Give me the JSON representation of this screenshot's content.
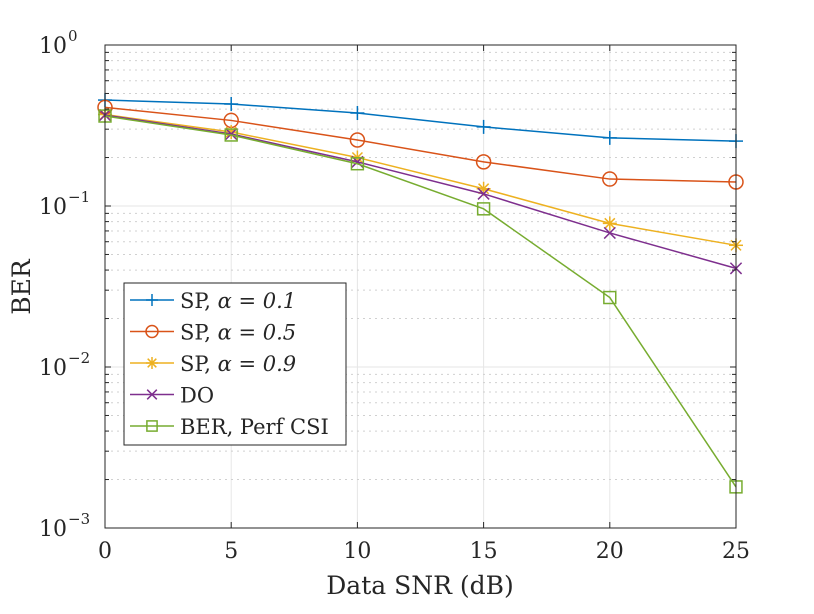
{
  "chart_data": {
    "type": "line",
    "title": "",
    "xlabel": "Data SNR (dB)",
    "ylabel": "BER",
    "xscale": "linear",
    "yscale": "log",
    "xlim": [
      0,
      25
    ],
    "ylim": [
      0.001,
      1
    ],
    "grid": true,
    "minor_grid": true,
    "legend_position": "bottom-left",
    "x": [
      0,
      5,
      10,
      15,
      20,
      25
    ],
    "xticks": [
      "0",
      "5",
      "10",
      "15",
      "20",
      "25"
    ],
    "yticks": [
      {
        "base": "10",
        "exp": "0",
        "value": 1
      },
      {
        "base": "10",
        "exp": "−1",
        "value": 0.1
      },
      {
        "base": "10",
        "exp": "−2",
        "value": 0.01
      },
      {
        "base": "10",
        "exp": "−3",
        "value": 0.001
      }
    ],
    "series": [
      {
        "name": "SP, α = 0.1",
        "label_pre": "SP, ",
        "label_math": "α = 0.1",
        "color": "#0072BD",
        "marker": "plus",
        "values": [
          0.455,
          0.43,
          0.378,
          0.31,
          0.265,
          0.253
        ]
      },
      {
        "name": "SP, α = 0.5",
        "label_pre": "SP, ",
        "label_math": "α = 0.5",
        "color": "#D95319",
        "marker": "circle",
        "values": [
          0.41,
          0.34,
          0.257,
          0.188,
          0.147,
          0.141
        ]
      },
      {
        "name": "SP, α = 0.9",
        "label_pre": "SP, ",
        "label_math": "α = 0.9",
        "color": "#EDB120",
        "marker": "asterisk",
        "values": [
          0.37,
          0.288,
          0.2,
          0.128,
          0.078,
          0.057
        ]
      },
      {
        "name": "DO",
        "label_pre": "DO",
        "label_math": "",
        "color": "#7E2F8E",
        "marker": "x",
        "values": [
          0.367,
          0.28,
          0.188,
          0.119,
          0.068,
          0.041
        ]
      },
      {
        "name": "BER, Perf CSI",
        "label_pre": "BER, Perf CSI",
        "label_math": "",
        "color": "#77AC30",
        "marker": "square",
        "values": [
          0.362,
          0.276,
          0.183,
          0.096,
          0.027,
          0.0018
        ]
      }
    ]
  }
}
